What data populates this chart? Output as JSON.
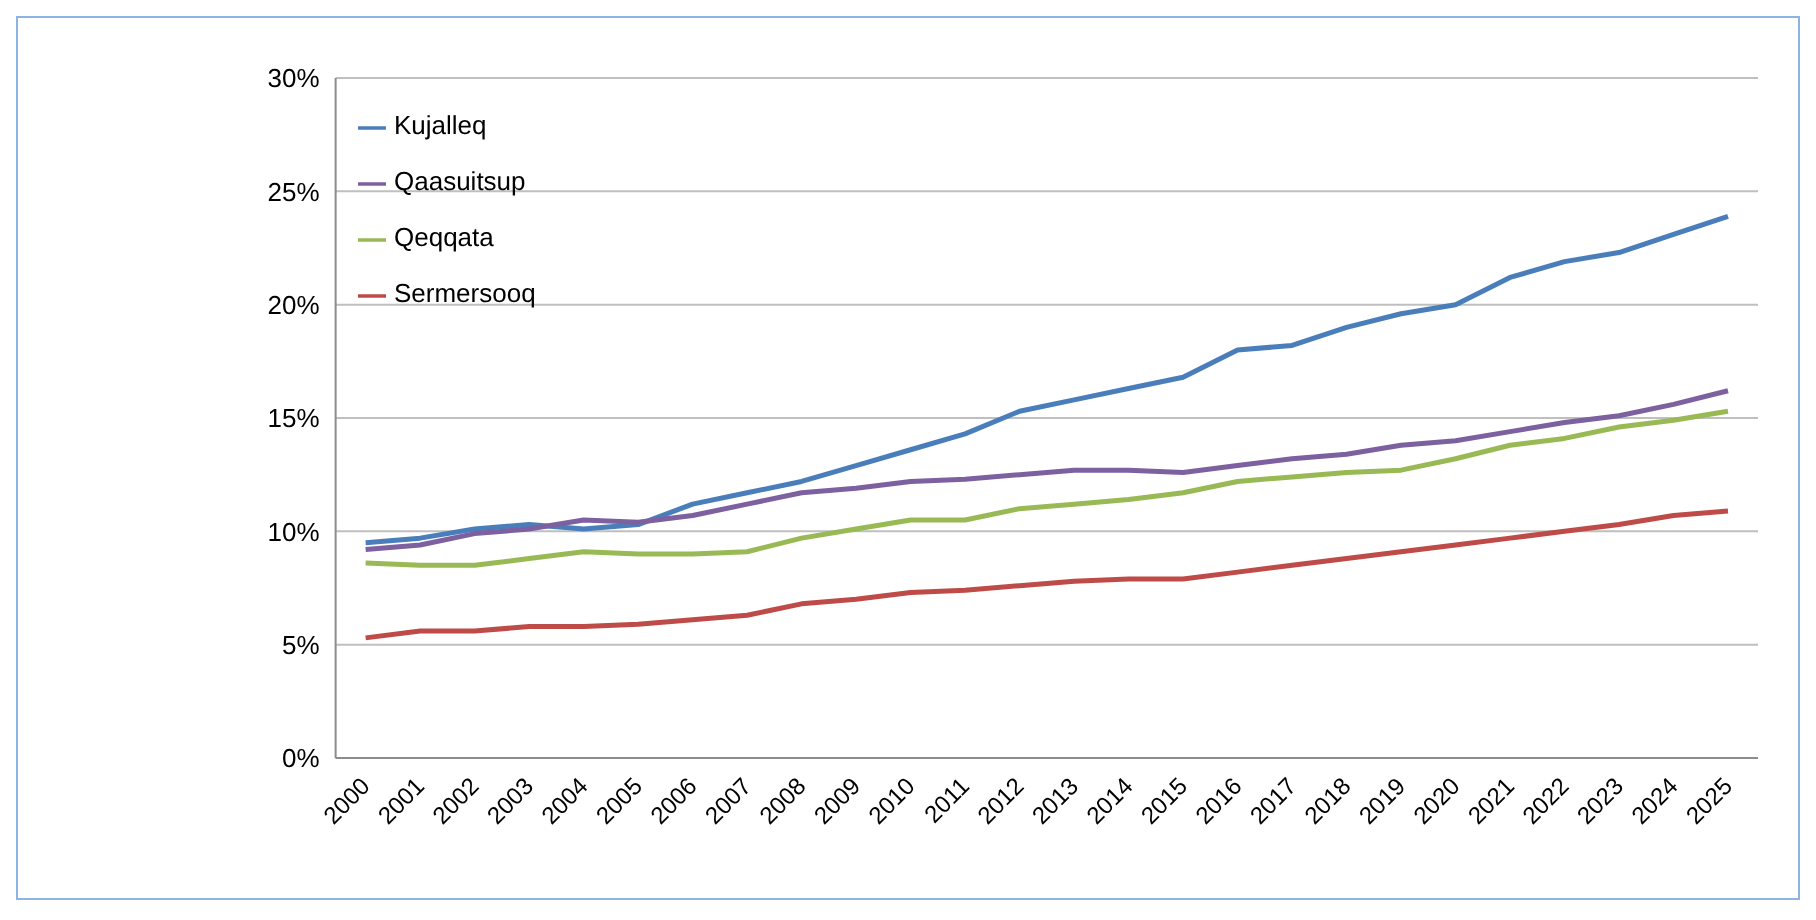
{
  "chart_data": {
    "type": "line",
    "categories": [
      "2000",
      "2001",
      "2002",
      "2003",
      "2004",
      "2005",
      "2006",
      "2007",
      "2008",
      "2009",
      "2010",
      "2011",
      "2012",
      "2013",
      "2014",
      "2015",
      "2016",
      "2017",
      "2018",
      "2019",
      "2020",
      "2021",
      "2022",
      "2023",
      "2024",
      "2025"
    ],
    "series": [
      {
        "name": "Kujalleq",
        "color": "#4a7ebb",
        "values": [
          9.5,
          9.7,
          10.1,
          10.3,
          10.1,
          10.3,
          11.2,
          11.7,
          12.2,
          12.9,
          13.6,
          14.3,
          15.3,
          15.8,
          16.3,
          16.8,
          18.0,
          18.2,
          19.0,
          19.6,
          20.0,
          21.2,
          21.9,
          22.3,
          23.1,
          23.9
        ]
      },
      {
        "name": "Sermersooq",
        "color": "#be4b48",
        "values": [
          5.3,
          5.6,
          5.6,
          5.8,
          5.8,
          5.9,
          6.1,
          6.3,
          6.8,
          7.0,
          7.3,
          7.4,
          7.6,
          7.8,
          7.9,
          7.9,
          8.2,
          8.5,
          8.8,
          9.1,
          9.4,
          9.7,
          10.0,
          10.3,
          10.7,
          10.9
        ]
      },
      {
        "name": "Qeqqata",
        "color": "#98b954",
        "values": [
          8.6,
          8.5,
          8.5,
          8.8,
          9.1,
          9.0,
          9.0,
          9.1,
          9.7,
          10.1,
          10.5,
          10.5,
          11.0,
          11.2,
          11.4,
          11.7,
          12.2,
          12.4,
          12.6,
          12.7,
          13.2,
          13.8,
          14.1,
          14.6,
          14.9,
          15.3
        ]
      },
      {
        "name": "Qaasuitsup",
        "color": "#7d60a0",
        "values": [
          9.2,
          9.4,
          9.9,
          10.1,
          10.5,
          10.4,
          10.7,
          11.2,
          11.7,
          11.9,
          12.2,
          12.3,
          12.5,
          12.7,
          12.7,
          12.6,
          12.9,
          13.2,
          13.4,
          13.8,
          14.0,
          14.4,
          14.8,
          15.1,
          15.6,
          16.2
        ]
      }
    ],
    "ylim": [
      0,
      30
    ],
    "yticks": [
      {
        "value": 0,
        "label": "0%"
      },
      {
        "value": 5,
        "label": "5%"
      },
      {
        "value": 10,
        "label": "10%"
      },
      {
        "value": 15,
        "label": "15%"
      },
      {
        "value": 20,
        "label": "20%"
      },
      {
        "value": 25,
        "label": "25%"
      },
      {
        "value": 30,
        "label": "30%"
      }
    ],
    "grid": "y",
    "legend": "top left",
    "marker": "none",
    "line_style": "solid"
  }
}
